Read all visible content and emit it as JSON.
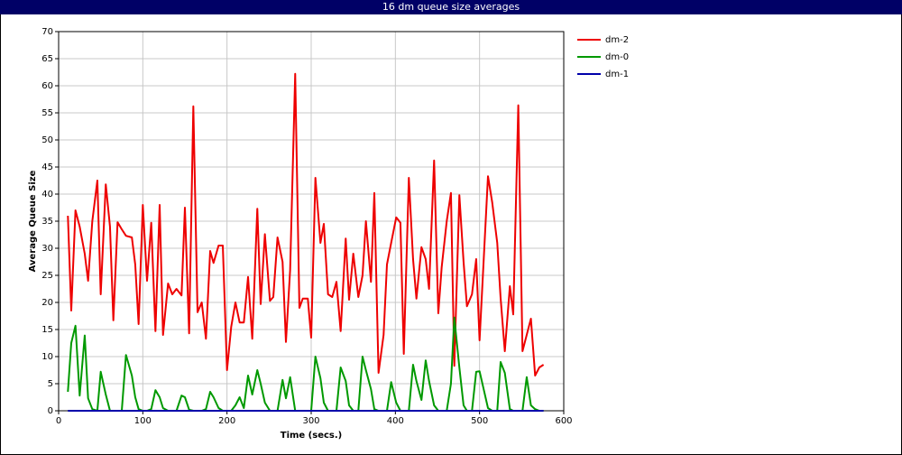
{
  "chart_data": {
    "type": "line",
    "title": "16 dm queue size averages",
    "x_label": "Time (secs.)",
    "y_label": "Average Queue Size",
    "xlim": [
      0,
      600
    ],
    "xticks": [
      0,
      100,
      200,
      300,
      400,
      500,
      600
    ],
    "ylim": [
      0,
      70
    ],
    "yticks": [
      0,
      5,
      10,
      15,
      20,
      25,
      30,
      35,
      40,
      45,
      50,
      55,
      60,
      65,
      70
    ],
    "grid": true,
    "legend": "right",
    "x": [
      11,
      15,
      20,
      25,
      31,
      35,
      40,
      46,
      50,
      56,
      61,
      65,
      70,
      75,
      80,
      87,
      91,
      95,
      100,
      105,
      110,
      115,
      120,
      124,
      130,
      135,
      140,
      146,
      150,
      155,
      160,
      165,
      170,
      175,
      180,
      184,
      190,
      195,
      200,
      205,
      210,
      215,
      220,
      225,
      230,
      236,
      240,
      245,
      251,
      255,
      260,
      266,
      270,
      275,
      281,
      286,
      290,
      296,
      300,
      305,
      311,
      315,
      320,
      325,
      330,
      335,
      341,
      345,
      350,
      356,
      361,
      365,
      371,
      375,
      380,
      386,
      390,
      395,
      401,
      406,
      410,
      416,
      421,
      425,
      431,
      436,
      440,
      446,
      451,
      455,
      461,
      466,
      470,
      476,
      481,
      485,
      491,
      496,
      500,
      510,
      515,
      521,
      525,
      530,
      536,
      540,
      546,
      551,
      556,
      561,
      566,
      571,
      576
    ],
    "series": [
      {
        "name": "dm-2",
        "color": "#ee0000",
        "values": [
          36,
          18.5,
          37,
          34,
          29,
          24,
          35,
          42.5,
          21.5,
          41.8,
          34,
          16.7,
          34.8,
          33.5,
          32.3,
          32,
          27,
          16,
          38,
          24,
          34.7,
          14.7,
          38,
          14,
          23.5,
          21.5,
          22.5,
          21.3,
          37.5,
          14.3,
          56.2,
          18.2,
          20,
          13.3,
          29.5,
          27.3,
          30.5,
          30.5,
          7.5,
          15.5,
          20,
          16.3,
          16.3,
          24.7,
          13.3,
          37.3,
          19.7,
          32.6,
          20.3,
          21,
          32,
          27.5,
          12.7,
          26,
          62.2,
          19,
          20.7,
          20.7,
          13.5,
          43,
          31,
          34.5,
          21.5,
          21,
          23.8,
          14.7,
          31.8,
          20.5,
          29,
          21,
          25,
          35,
          23.8,
          40.2,
          7,
          14,
          27,
          31,
          35.7,
          34.7,
          10.5,
          43,
          28,
          20.7,
          30.2,
          28,
          22.5,
          46.2,
          18,
          26.5,
          35,
          40.2,
          8.3,
          39.8,
          27.5,
          19.3,
          21.5,
          28,
          13,
          43.3,
          38.5,
          31,
          20.8,
          11,
          23,
          17.8,
          56.4,
          11,
          14,
          17,
          6.5,
          8,
          8.5
        ]
      },
      {
        "name": "dm-0",
        "color": "#009900",
        "values": [
          3.5,
          12.5,
          15.7,
          2.8,
          13.9,
          2.3,
          0.3,
          0,
          7.2,
          3,
          0,
          0,
          0,
          0,
          10.3,
          6.5,
          2.5,
          0.3,
          0,
          0,
          0.3,
          3.8,
          2.5,
          0.5,
          0,
          0,
          0,
          2.8,
          2.5,
          0.2,
          0,
          0,
          0,
          0.3,
          3.5,
          2.5,
          0.5,
          0,
          0,
          0,
          1,
          2.5,
          0.5,
          6.5,
          3,
          7.5,
          5,
          1.5,
          0,
          0,
          0,
          5.7,
          2.3,
          6.2,
          0,
          0,
          0,
          0,
          0,
          10,
          6,
          1.5,
          0,
          0,
          0,
          8,
          5.5,
          1,
          0,
          0,
          10,
          7.5,
          4,
          0.3,
          0,
          0,
          0,
          5.3,
          1.5,
          0,
          0,
          0,
          8.5,
          5.5,
          2,
          9.3,
          5.5,
          1,
          0,
          0,
          0,
          5,
          17.2,
          8,
          1,
          0,
          0,
          7.2,
          7.3,
          0.5,
          0,
          0,
          9,
          7,
          0.3,
          0,
          0,
          0,
          6.2,
          1,
          0.3,
          0,
          0
        ]
      },
      {
        "name": "dm-1",
        "color": "#0000aa",
        "values": [
          0,
          0,
          0,
          0,
          0,
          0,
          0,
          0,
          0,
          0,
          0,
          0,
          0,
          0,
          0,
          0,
          0,
          0,
          0,
          0,
          0,
          0,
          0,
          0,
          0,
          0,
          0,
          0,
          0,
          0,
          0,
          0,
          0,
          0,
          0,
          0,
          0,
          0,
          0,
          0,
          0,
          0,
          0,
          0,
          0,
          0,
          0,
          0,
          0,
          0,
          0,
          0,
          0,
          0,
          0,
          0,
          0,
          0,
          0,
          0,
          0,
          0,
          0,
          0,
          0,
          0,
          0,
          0,
          0,
          0,
          0,
          0,
          0,
          0,
          0,
          0,
          0,
          0,
          0,
          0,
          0,
          0,
          0,
          0,
          0,
          0,
          0,
          0,
          0,
          0,
          0,
          0,
          0,
          0,
          0,
          0,
          0,
          0,
          0,
          0,
          0,
          0,
          0,
          0,
          0,
          0,
          0,
          0,
          0,
          0,
          0,
          0,
          0
        ]
      }
    ]
  }
}
